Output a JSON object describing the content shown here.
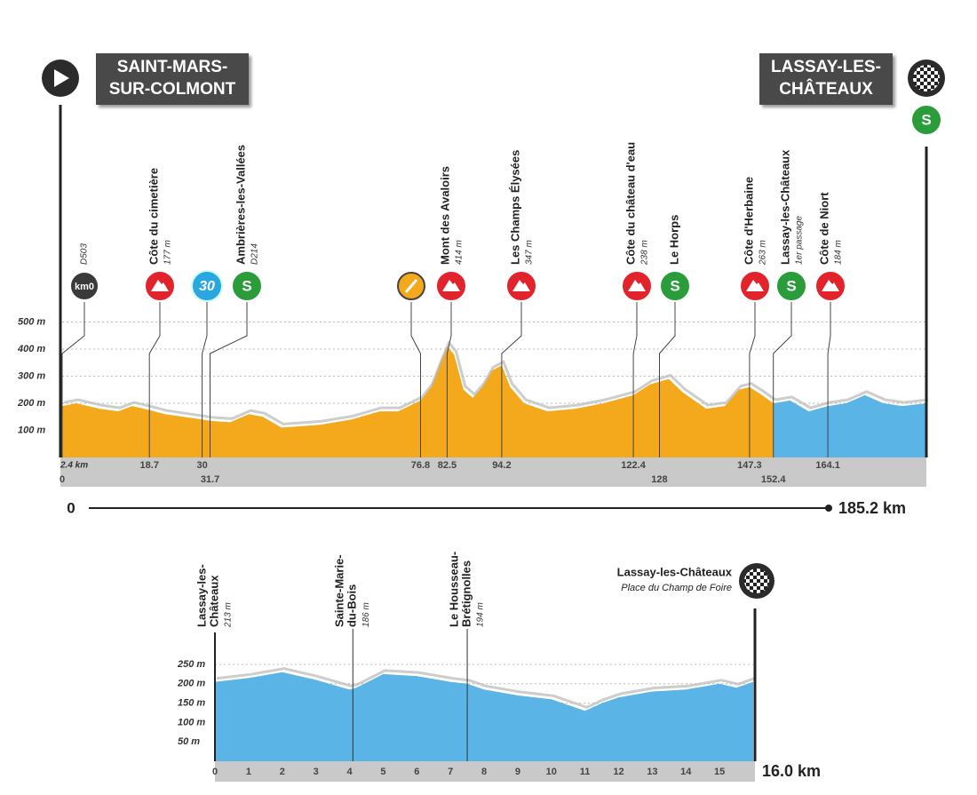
{
  "chart_data": [
    {
      "type": "area",
      "start": {
        "lines": [
          "SAINT-MARS-",
          "SUR-COLMONT"
        ]
      },
      "finish": {
        "lines": [
          "LASSAY-LES-",
          "CHÂTEAUX"
        ],
        "icon_text": "S"
      },
      "xlim": [
        0,
        185.2
      ],
      "end_label": "185.2 km",
      "neutral": "2.4 km",
      "ylim": [
        0,
        500
      ],
      "yticks": [
        {
          "value": 100,
          "label": "100 m"
        },
        {
          "value": 200,
          "label": "200 m"
        },
        {
          "value": 300,
          "label": "300 m"
        },
        {
          "value": 400,
          "label": "400 m"
        },
        {
          "value": 500,
          "label": "500 m"
        }
      ],
      "grid": true,
      "series": [
        {
          "color": "#f4a81c",
          "x": [
            0,
            3,
            8,
            12,
            15,
            18.7,
            22,
            26,
            30,
            31.7,
            36,
            40,
            43,
            47,
            55,
            62,
            68,
            72,
            76.8,
            79,
            81,
            82.5,
            84,
            86,
            88,
            90,
            92,
            94.2,
            96,
            99,
            104,
            110,
            116,
            122.4,
            126,
            130,
            133,
            138,
            142,
            145,
            147.3,
            150,
            152.4
          ],
          "values": [
            190,
            200,
            180,
            170,
            190,
            175,
            160,
            150,
            140,
            135,
            130,
            160,
            150,
            110,
            120,
            140,
            170,
            170,
            210,
            260,
            350,
            410,
            380,
            250,
            220,
            260,
            320,
            340,
            260,
            200,
            170,
            180,
            200,
            230,
            270,
            290,
            240,
            180,
            190,
            250,
            260,
            230,
            200
          ]
        },
        {
          "color": "#5ab4e5",
          "x": [
            152.4,
            156,
            160,
            164.1,
            168,
            172,
            176,
            180,
            185.2
          ],
          "values": [
            200,
            210,
            170,
            190,
            200,
            230,
            200,
            190,
            200
          ]
        }
      ],
      "points": [
        {
          "km": 0,
          "name": "D503",
          "icon": "km0",
          "icon_text": "km0"
        },
        {
          "km": 18.7,
          "name": "Côte du cimetière",
          "detail": "177 m",
          "icon": "climb"
        },
        {
          "km": 30,
          "icon": "time",
          "icon_text": "30"
        },
        {
          "km": 31.7,
          "name": "Ambrières-les-Vallées",
          "detail": "D214",
          "icon": "sprint",
          "icon_text": "S"
        },
        {
          "km": 76.8,
          "icon": "feed"
        },
        {
          "km": 82.5,
          "name": "Mont des Avaloirs",
          "detail": "414 m",
          "icon": "climb"
        },
        {
          "km": 94.2,
          "name": "Les Champs Élysées",
          "detail": "347 m",
          "icon": "climb"
        },
        {
          "km": 122.4,
          "name": "Côte du château d'eau",
          "detail": "238 m",
          "icon": "climb"
        },
        {
          "km": 128,
          "name": "Le Horps",
          "icon": "sprint",
          "icon_text": "S"
        },
        {
          "km": 147.3,
          "name": "Côte d'Herbaine",
          "detail": "263 m",
          "icon": "climb"
        },
        {
          "km": 152.4,
          "name": "Lassay-les-Châteaux",
          "detail": "1er passage",
          "icon": "sprint",
          "icon_text": "S"
        },
        {
          "km": 164.1,
          "name": "Côte de Niort",
          "detail": "184 m",
          "icon": "climb"
        }
      ]
    },
    {
      "type": "area",
      "finish": {
        "name": "Lassay-les-Châteaux",
        "place": "Place du Champ de Foire"
      },
      "xlim": [
        0,
        16
      ],
      "xticks": [
        0,
        1,
        2,
        3,
        4,
        5,
        6,
        7,
        8,
        9,
        10,
        11,
        12,
        13,
        14,
        15
      ],
      "end_label": "16.0 km",
      "ylim": [
        0,
        250
      ],
      "yticks": [
        {
          "value": 50,
          "label": "50 m"
        },
        {
          "value": 100,
          "label": "100 m"
        },
        {
          "value": 150,
          "label": "150 m"
        },
        {
          "value": 200,
          "label": "200 m"
        },
        {
          "value": 250,
          "label": "250 m"
        }
      ],
      "grid": true,
      "series": [
        {
          "color": "#5ab4e5",
          "x": [
            0,
            1,
            2,
            3,
            4,
            4.2,
            5,
            6,
            7,
            7.5,
            8,
            9,
            10,
            11,
            11.5,
            12,
            13,
            14,
            15,
            15.5,
            16
          ],
          "values": [
            205,
            215,
            230,
            210,
            185,
            190,
            225,
            220,
            205,
            200,
            185,
            170,
            160,
            130,
            150,
            165,
            180,
            185,
            200,
            190,
            205
          ]
        }
      ],
      "points": [
        {
          "km": 0,
          "lines": [
            "Lassay-les-",
            "Châteaux"
          ],
          "detail": "213 m"
        },
        {
          "km": 4.1,
          "lines": [
            "Sainte-Marie-",
            "du-Bois"
          ],
          "detail": "186 m"
        },
        {
          "km": 7.5,
          "lines": [
            "Le Housseau-",
            "Brétignolles"
          ],
          "detail": "194 m"
        }
      ]
    }
  ]
}
